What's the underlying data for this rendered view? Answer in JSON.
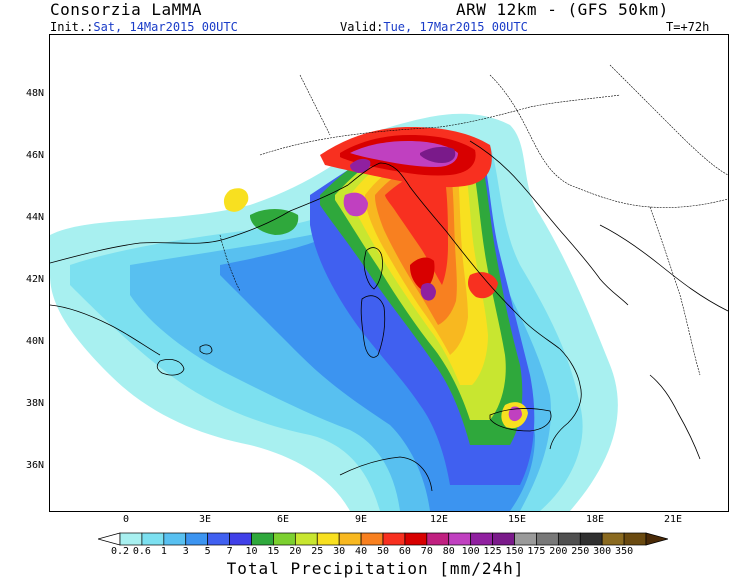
{
  "header": {
    "org": "Consorzia LaMMA",
    "model": "ARW 12km - (GFS 50km)",
    "init_label": "Init.:",
    "init_value": "Sat, 14Mar2015 00UTC",
    "valid_label": "Valid:",
    "valid_value": "Tue, 17Mar2015 00UTC",
    "lead_time": "T=+72h"
  },
  "map": {
    "lat_labels": [
      "48N",
      "46N",
      "44N",
      "42N",
      "40N",
      "38N",
      "36N"
    ],
    "lon_labels": [
      "0",
      "3E",
      "6E",
      "9E",
      "12E",
      "15E",
      "18E",
      "21E"
    ],
    "coastline_color": "#000000"
  },
  "colorbar": {
    "title": "Total Precipitation [mm/24h]",
    "ticks": [
      "0.2",
      "0.6",
      "1",
      "3",
      "5",
      "7",
      "10",
      "15",
      "20",
      "25",
      "30",
      "40",
      "50",
      "60",
      "70",
      "80",
      "100",
      "125",
      "150",
      "175",
      "200",
      "250",
      "300",
      "350"
    ],
    "colors": [
      "#ffffff",
      "#a8f0f0",
      "#7ce0f0",
      "#58c0f0",
      "#3c94f0",
      "#4060f0",
      "#4040e8",
      "#2fa83c",
      "#7cd030",
      "#c8e630",
      "#f8e020",
      "#f8b820",
      "#f88020",
      "#f83020",
      "#d80000",
      "#c02080",
      "#c040c0",
      "#9020a0",
      "#7a1a8a",
      "#9a9a9a",
      "#787878",
      "#505050",
      "#303030",
      "#8a6a20",
      "#6a4a10",
      "#4a2a08"
    ]
  },
  "precipitation_levels_legend": [
    "0.2",
    "0.6",
    "1",
    "3",
    "5",
    "7",
    "10",
    "15",
    "20",
    "25",
    "30",
    "40",
    "50",
    "60",
    "70",
    "80",
    "100",
    "125",
    "150",
    "175",
    "200",
    "250",
    "300",
    "350"
  ]
}
